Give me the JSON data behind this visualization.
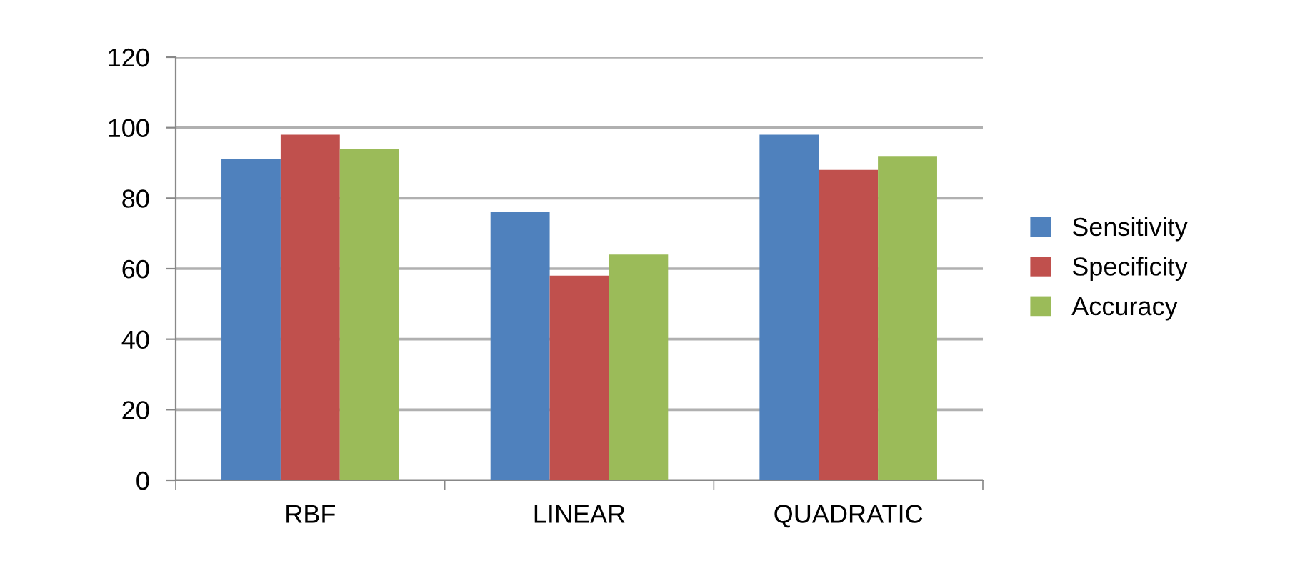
{
  "chart_data": {
    "type": "bar",
    "categories": [
      "RBF",
      "LINEAR",
      "QUADRATIC"
    ],
    "series": [
      {
        "name": "Sensitivity",
        "color": "#4f81bd",
        "values": [
          91,
          76,
          98
        ]
      },
      {
        "name": "Specificity",
        "color": "#c0504d",
        "values": [
          98,
          58,
          88
        ]
      },
      {
        "name": "Accuracy",
        "color": "#9bbb59",
        "values": [
          94,
          64,
          92
        ]
      }
    ],
    "ylim": [
      0,
      120
    ],
    "yticks": [
      0,
      20,
      40,
      60,
      80,
      100,
      120
    ],
    "grid": "y",
    "legend": "right"
  }
}
